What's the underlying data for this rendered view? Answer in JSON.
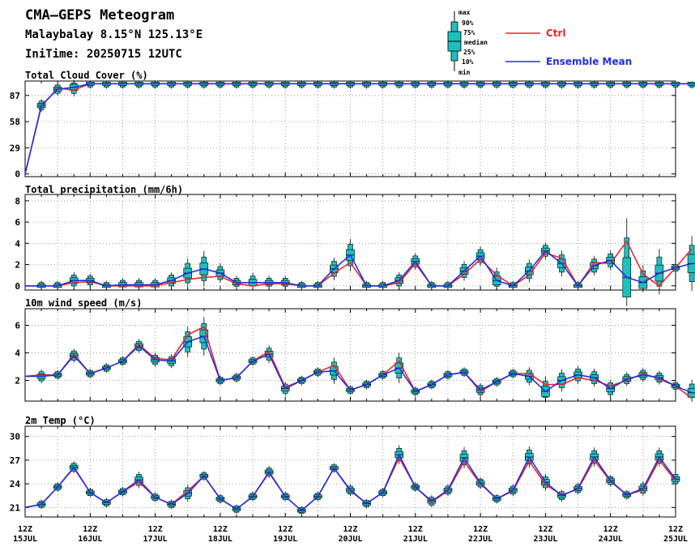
{
  "header": {
    "title": "CMA–GEPS Meteogram",
    "location": "Malaybalay 8.15°N 125.13°E",
    "init": "IniTime: 20250715 12UTC"
  },
  "legend": {
    "box_labels": [
      "max",
      "90%",
      "75%",
      "median",
      "25%",
      "10%",
      "min"
    ],
    "ctrl": "Ctrl",
    "mean": "Ensemble Mean"
  },
  "colors": {
    "ctrl": "#e8262b",
    "mean": "#2030e0",
    "box": "#1fbfbf",
    "grid": "#888888"
  },
  "x_axis": {
    "tick_top": [
      "12Z",
      "12Z",
      "12Z",
      "12Z",
      "12Z",
      "12Z",
      "12Z",
      "12Z",
      "12Z",
      "12Z",
      "12Z"
    ],
    "tick_bottom": [
      "15JUL",
      "16JUL",
      "17JUL",
      "18JUL",
      "19JUL",
      "20JUL",
      "21JUL",
      "22JUL",
      "23JUL",
      "24JUL",
      "25JUL"
    ]
  },
  "chart_data": [
    {
      "type": "line",
      "title": "Total Cloud Cover (%)",
      "ylim": [
        -3,
        103
      ],
      "yticks": [
        0,
        29,
        58,
        87
      ],
      "x_start": "2025-07-15 12Z",
      "x_step_hours": 6,
      "series": [
        {
          "name": "Ctrl",
          "values": [
            0,
            75,
            95,
            93,
            100,
            100,
            100,
            100,
            100,
            100,
            100,
            100,
            100,
            100,
            100,
            100,
            100,
            100,
            100,
            100,
            100,
            100,
            100,
            100,
            100,
            100,
            100,
            100,
            100,
            100,
            100,
            100,
            100,
            100,
            100,
            100,
            100,
            100,
            100,
            100,
            100,
            100
          ]
        },
        {
          "name": "Ensemble Mean",
          "values": [
            0,
            76,
            94,
            96,
            100,
            100,
            100,
            100,
            100,
            100,
            100,
            100,
            100,
            100,
            100,
            100,
            100,
            100,
            100,
            100,
            100,
            100,
            100,
            100,
            100,
            100,
            100,
            100,
            100,
            100,
            100,
            100,
            100,
            100,
            100,
            100,
            100,
            100,
            100,
            100,
            100,
            100
          ]
        }
      ]
    },
    {
      "type": "line",
      "title": "Total precipitation (mm/6h)",
      "ylim": [
        -0.4,
        8.6
      ],
      "yticks": [
        0,
        2,
        4,
        6,
        8
      ],
      "x_start": "2025-07-15 12Z",
      "x_step_hours": 6,
      "series": [
        {
          "name": "Ctrl",
          "values": [
            0,
            0,
            0,
            0.3,
            0.4,
            0,
            0,
            0,
            0,
            0.3,
            0.6,
            0.8,
            0.9,
            0.2,
            0,
            0.2,
            0.2,
            0,
            0,
            1.2,
            2.2,
            0,
            0,
            0.3,
            2.1,
            0,
            0,
            1.1,
            2.5,
            1.0,
            0,
            1.0,
            3.1,
            2.6,
            0,
            2.2,
            2.1,
            4.2,
            1.1,
            0,
            1.7,
            3.5
          ]
        },
        {
          "name": "Ensemble Mean",
          "values": [
            0,
            0,
            0,
            0.5,
            0.5,
            0,
            0.1,
            0.1,
            0.1,
            0.5,
            1.2,
            1.6,
            1.2,
            0.3,
            0.3,
            0.3,
            0.3,
            0,
            0,
            1.6,
            2.9,
            0,
            0,
            0.5,
            2.3,
            0,
            0,
            1.4,
            2.8,
            0.5,
            0,
            1.4,
            3.3,
            2.1,
            0,
            1.9,
            2.4,
            0.8,
            0.3,
            1.2,
            1.7,
            2.1
          ]
        }
      ]
    },
    {
      "type": "line",
      "title": "10m wind speed (m/s)",
      "ylim": [
        0.5,
        7.2
      ],
      "yticks": [
        2,
        4,
        6
      ],
      "x_start": "2025-07-15 12Z",
      "x_step_hours": 6,
      "series": [
        {
          "name": "Ctrl",
          "values": [
            2.3,
            2.4,
            2.4,
            3.9,
            2.5,
            2.9,
            3.4,
            4.6,
            3.6,
            3.5,
            5.3,
            5.9,
            2.0,
            2.2,
            3.4,
            4.1,
            1.5,
            2.0,
            2.6,
            3.1,
            1.3,
            1.7,
            2.4,
            3.4,
            1.2,
            1.7,
            2.4,
            2.6,
            1.2,
            1.9,
            2.5,
            2.5,
            1.7,
            1.7,
            2.2,
            2.0,
            1.6,
            2.0,
            2.5,
            2.1,
            1.6,
            0.7
          ]
        },
        {
          "name": "Ensemble Mean",
          "values": [
            2.3,
            2.3,
            2.4,
            3.8,
            2.5,
            2.9,
            3.4,
            4.5,
            3.5,
            3.4,
            4.8,
            5.2,
            2.0,
            2.2,
            3.4,
            3.9,
            1.4,
            2.0,
            2.6,
            2.7,
            1.3,
            1.7,
            2.4,
            2.9,
            1.2,
            1.7,
            2.4,
            2.6,
            1.3,
            1.9,
            2.5,
            2.3,
            1.2,
            2.0,
            2.4,
            2.2,
            1.4,
            2.1,
            2.4,
            2.2,
            1.6,
            1.1
          ]
        }
      ]
    },
    {
      "type": "line",
      "title": "2m Temp (°C)",
      "ylim": [
        19.8,
        31.3
      ],
      "yticks": [
        21,
        24,
        27,
        30
      ],
      "x_start": "2025-07-15 12Z",
      "x_step_hours": 6,
      "series": [
        {
          "name": "Ctrl",
          "values": [
            21.0,
            21.4,
            23.6,
            26.0,
            22.9,
            21.6,
            23.0,
            24.2,
            22.3,
            21.4,
            23.1,
            25.0,
            22.1,
            20.8,
            22.4,
            25.4,
            22.4,
            20.6,
            22.4,
            26.0,
            23.1,
            21.5,
            22.9,
            27.3,
            23.6,
            21.7,
            23.1,
            26.8,
            24.0,
            22.1,
            23.1,
            26.9,
            23.9,
            22.6,
            23.3,
            27.0,
            24.3,
            22.6,
            23.2,
            27.0,
            24.4
          ]
        },
        {
          "name": "Ensemble Mean",
          "values": [
            21.0,
            21.4,
            23.6,
            26.1,
            22.9,
            21.6,
            23.0,
            24.5,
            22.3,
            21.4,
            22.8,
            25.0,
            22.1,
            20.8,
            22.4,
            25.5,
            22.4,
            20.6,
            22.4,
            26.0,
            23.2,
            21.5,
            22.9,
            27.7,
            23.6,
            21.8,
            23.2,
            27.3,
            24.1,
            22.1,
            23.2,
            27.4,
            24.2,
            22.5,
            23.4,
            27.4,
            24.4,
            22.6,
            23.4,
            27.4,
            24.6
          ]
        }
      ]
    }
  ]
}
